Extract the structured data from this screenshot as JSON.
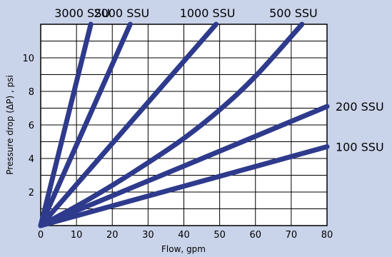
{
  "chart_data": {
    "type": "line",
    "xlabel": "Flow, gpm",
    "ylabel": "Pressure drop (ΔP) , psi",
    "xlim": [
      0,
      80
    ],
    "ylim": [
      0,
      12
    ],
    "x_ticks": [
      0,
      10,
      20,
      30,
      40,
      50,
      60,
      70,
      80
    ],
    "y_ticks": [
      2,
      4,
      6,
      8,
      10
    ],
    "grid": true,
    "line_color": "#2e3a8c",
    "background_color": "#c9d3ea",
    "plot_background": "#ffffff",
    "series": [
      {
        "name": "3000 SSU",
        "label_position": "top",
        "x": [
          0,
          14
        ],
        "y": [
          0,
          12
        ]
      },
      {
        "name": "2000 SSU",
        "label_position": "top",
        "x": [
          0,
          25
        ],
        "y": [
          0,
          12
        ]
      },
      {
        "name": "1000 SSU",
        "label_position": "top",
        "x": [
          0,
          49
        ],
        "y": [
          0,
          12
        ]
      },
      {
        "name": "500 SSU",
        "label_position": "top",
        "x": [
          0,
          10,
          20,
          30,
          40,
          50,
          60,
          73
        ],
        "y": [
          0,
          1.15,
          2.4,
          3.75,
          5.2,
          6.9,
          8.9,
          12.0
        ]
      },
      {
        "name": "200 SSU",
        "label_position": "right",
        "x": [
          0,
          80
        ],
        "y": [
          0,
          7.1
        ]
      },
      {
        "name": "100 SSU",
        "label_position": "right",
        "x": [
          0,
          80
        ],
        "y": [
          0,
          4.7
        ]
      }
    ]
  }
}
